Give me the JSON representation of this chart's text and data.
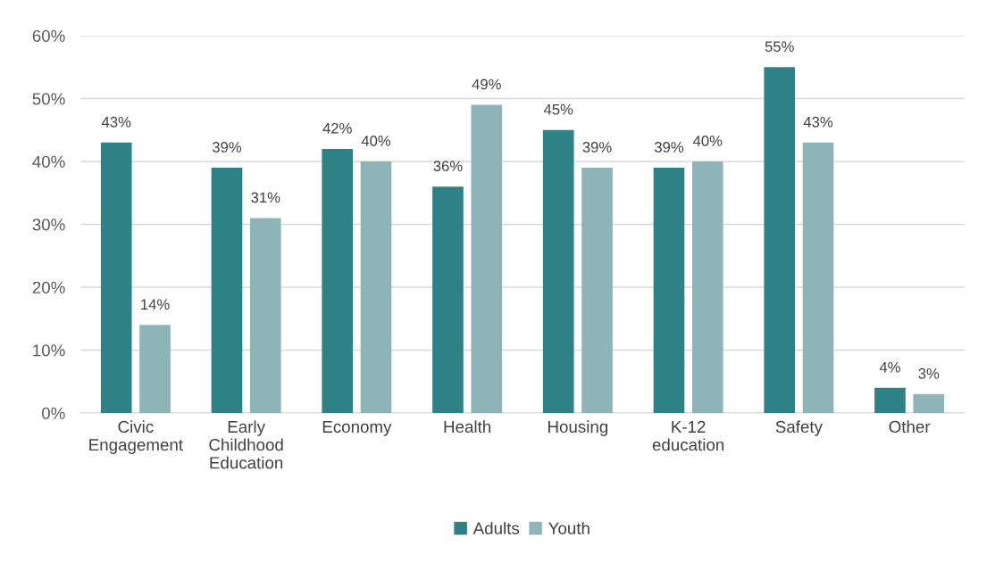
{
  "chart_data": {
    "type": "bar",
    "categories": [
      "Civic\nEngagement",
      "Early\nChildhood\nEducation",
      "Economy",
      "Health",
      "Housing",
      "K-12\neducation",
      "Safety",
      "Other"
    ],
    "series": [
      {
        "name": "Adults",
        "color": "#2e8285",
        "values": [
          43,
          39,
          42,
          36,
          45,
          39,
          55,
          4
        ],
        "value_labels": [
          "43%",
          "39%",
          "42%",
          "36%",
          "45%",
          "39%",
          "55%",
          "4%"
        ]
      },
      {
        "name": "Youth",
        "color": "#8db5b8",
        "values": [
          14,
          31,
          40,
          49,
          39,
          40,
          43,
          3
        ],
        "value_labels": [
          "14%",
          "31%",
          "40%",
          "49%",
          "39%",
          "40%",
          "43%",
          "3%"
        ]
      }
    ],
    "ylim": [
      0,
      60
    ],
    "yticks": [
      {
        "value": 0,
        "label": "0%"
      },
      {
        "value": 10,
        "label": "10%"
      },
      {
        "value": 20,
        "label": "20%"
      },
      {
        "value": 30,
        "label": "30%"
      },
      {
        "value": 40,
        "label": "40%"
      },
      {
        "value": 50,
        "label": "50%"
      },
      {
        "value": 60,
        "label": "60%"
      }
    ],
    "grid": "y",
    "legend": "bottom"
  }
}
